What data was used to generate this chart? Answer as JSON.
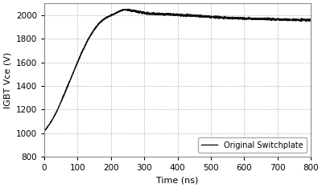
{
  "title": "",
  "xlabel": "Time (ns)",
  "ylabel": "IGBT Vce (V)",
  "xlim": [
    0,
    800
  ],
  "ylim": [
    800,
    2100
  ],
  "xticks": [
    0,
    100,
    200,
    300,
    400,
    500,
    600,
    700,
    800
  ],
  "yticks": [
    800,
    1000,
    1200,
    1400,
    1600,
    1800,
    2000
  ],
  "legend_label": "Original Switchplate",
  "line_color": "#111111",
  "line_width": 1.0,
  "background_color": "#ffffff",
  "grid_color": "#bbbbbb",
  "curve_x": [
    0,
    5,
    10,
    20,
    30,
    40,
    50,
    60,
    70,
    80,
    90,
    100,
    110,
    120,
    130,
    140,
    150,
    160,
    170,
    180,
    190,
    200,
    210,
    220,
    230,
    240,
    250,
    260,
    270,
    280,
    290,
    300,
    320,
    340,
    360,
    380,
    400,
    430,
    460,
    490,
    500,
    520,
    550,
    580,
    600,
    650,
    700,
    750,
    800
  ],
  "curve_y": [
    1020,
    1035,
    1055,
    1095,
    1145,
    1200,
    1265,
    1330,
    1400,
    1465,
    1535,
    1600,
    1668,
    1728,
    1785,
    1835,
    1878,
    1915,
    1945,
    1968,
    1985,
    1998,
    2010,
    2025,
    2038,
    2045,
    2045,
    2040,
    2035,
    2030,
    2025,
    2018,
    2012,
    2010,
    2008,
    2005,
    2002,
    1998,
    1993,
    1988,
    1985,
    1982,
    1978,
    1974,
    1972,
    1968,
    1964,
    1960,
    1958
  ]
}
